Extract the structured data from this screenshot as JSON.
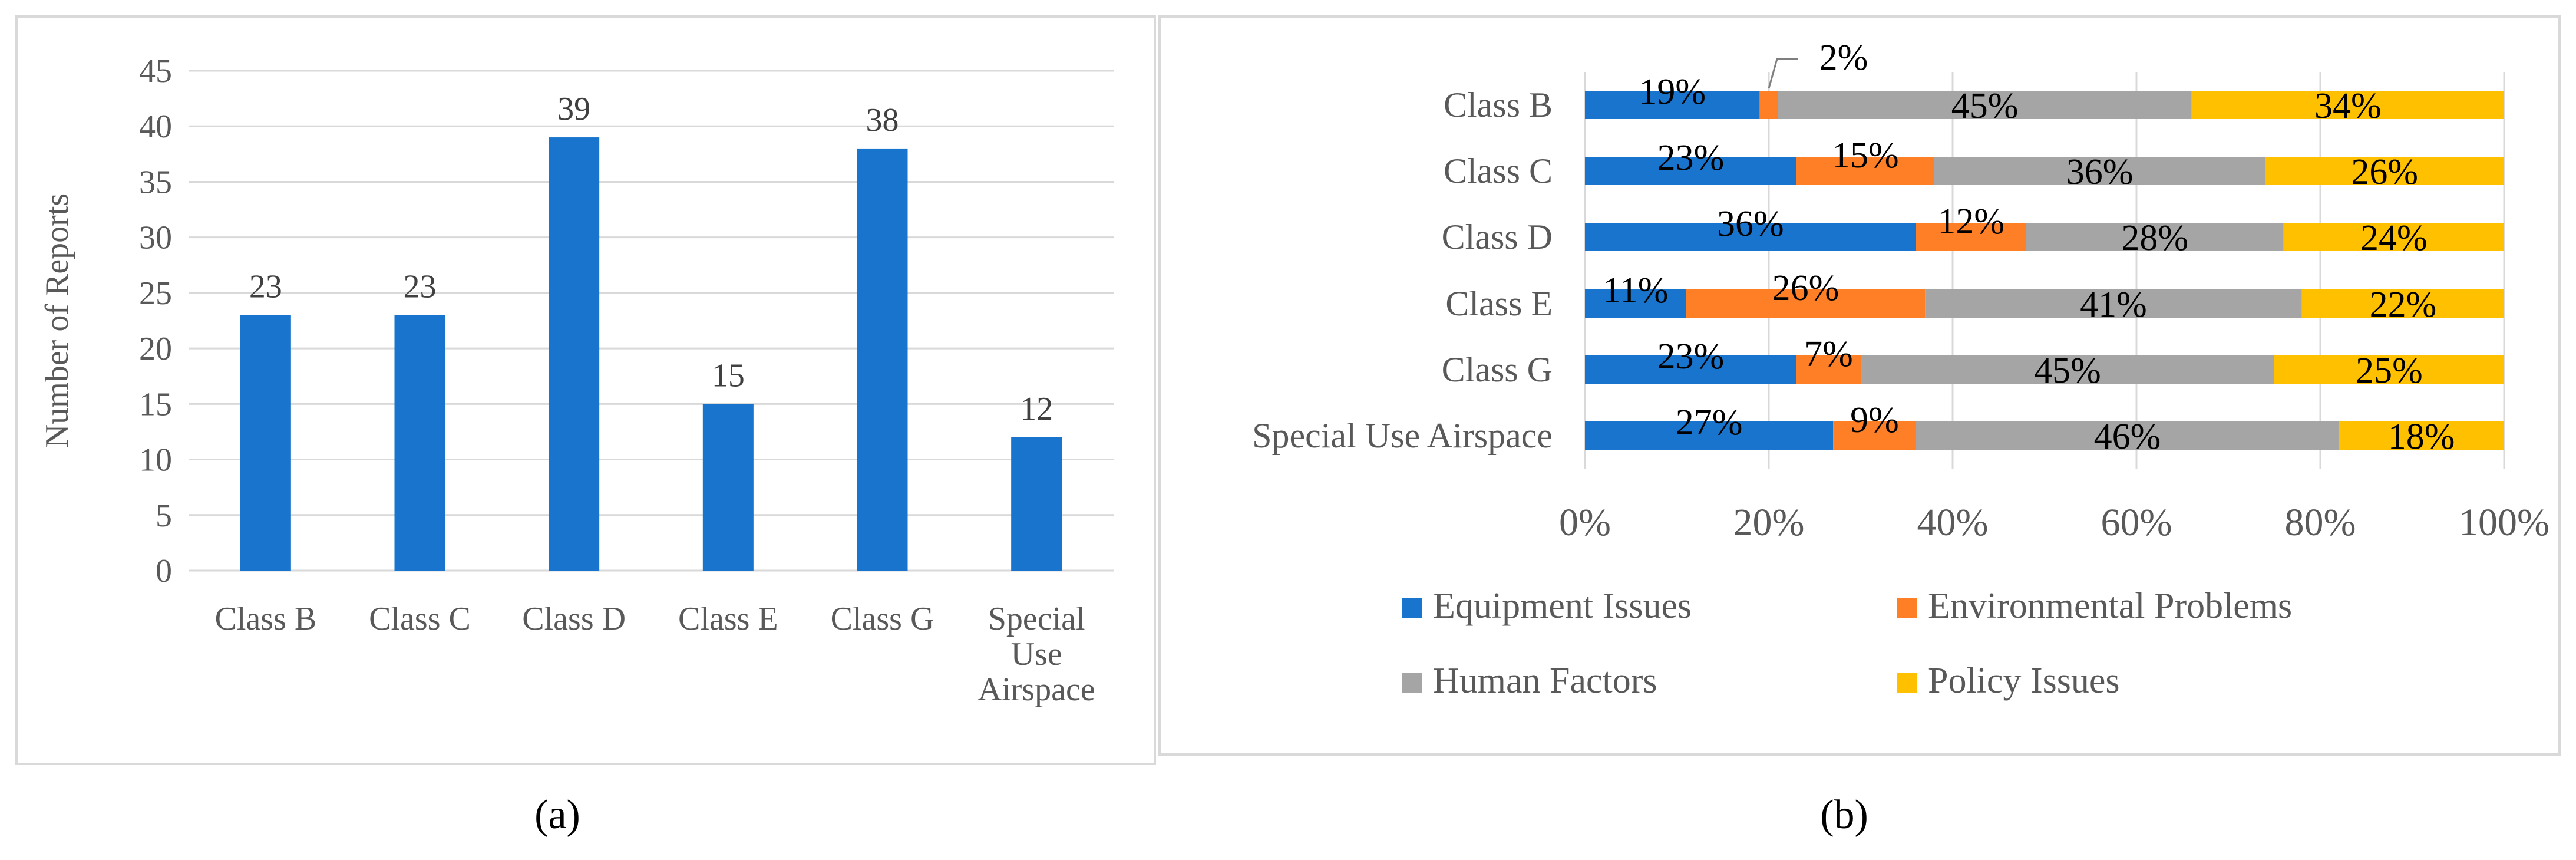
{
  "colors": {
    "bar_blue": "#1874CD",
    "equipment": "#1874CD",
    "environmental": "#FF7F27",
    "human": "#A5A5A5",
    "policy": "#FFC000",
    "grid": "#D9D9D9",
    "frame": "#D9D9D9",
    "axis_text": "#595959",
    "label_text": "#404040",
    "caption_text": "#000000"
  },
  "captions": {
    "a": "(a)",
    "b": "(b)"
  },
  "chart_data": [
    {
      "type": "bar",
      "title": "",
      "xlabel": "",
      "ylabel": "Number of Reports",
      "ylim": [
        0,
        45
      ],
      "yticks": [
        "0",
        "5",
        "10",
        "15",
        "20",
        "25",
        "30",
        "35",
        "40",
        "45"
      ],
      "categories": [
        [
          "Class B"
        ],
        [
          "Class C"
        ],
        [
          "Class D"
        ],
        [
          "Class E"
        ],
        [
          "Class G"
        ],
        [
          "Special",
          "Use",
          "Airspace"
        ]
      ],
      "values": [
        23,
        23,
        39,
        15,
        38,
        12
      ],
      "data_labels": [
        "23",
        "23",
        "39",
        "15",
        "38",
        "12"
      ],
      "grid": true
    },
    {
      "type": "bar",
      "orientation": "horizontal",
      "stacked": "percent",
      "title": "",
      "xlim": [
        0,
        100
      ],
      "xticks": [
        "0%",
        "20%",
        "40%",
        "60%",
        "80%",
        "100%"
      ],
      "categories": [
        "Class B",
        "Class C",
        "Class D",
        "Class E",
        "Class G",
        "Special Use Airspace"
      ],
      "series": [
        {
          "name": "Equipment Issues",
          "values": [
            19,
            23,
            36,
            11,
            23,
            27
          ],
          "labels": [
            "19%",
            "23%",
            "36%",
            "11%",
            "23%",
            "27%"
          ]
        },
        {
          "name": "Environmental Problems",
          "values": [
            2,
            15,
            12,
            26,
            7,
            9
          ],
          "labels": [
            "2%",
            "15%",
            "12%",
            "26%",
            "7%",
            "9%"
          ]
        },
        {
          "name": "Human Factors",
          "values": [
            45,
            36,
            28,
            41,
            45,
            46
          ],
          "labels": [
            "45%",
            "36%",
            "28%",
            "41%",
            "45%",
            "46%"
          ]
        },
        {
          "name": "Policy Issues",
          "values": [
            34,
            26,
            24,
            22,
            25,
            18
          ],
          "labels": [
            "34%",
            "26%",
            "24%",
            "22%",
            "25%",
            "18%"
          ]
        }
      ],
      "legend_position": "bottom",
      "grid": true
    }
  ]
}
